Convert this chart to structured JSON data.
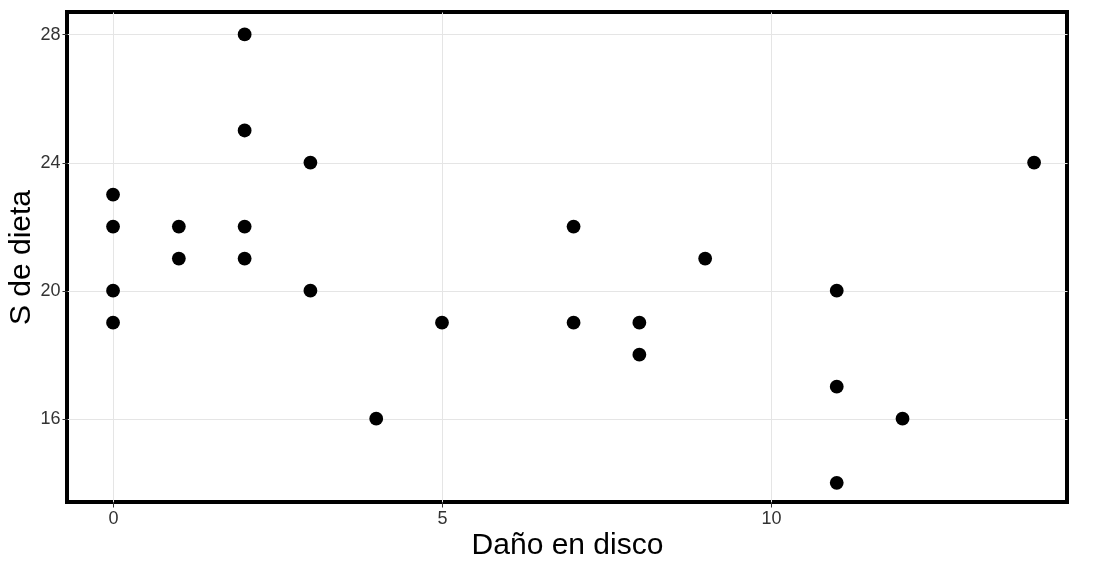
{
  "chart_data": {
    "type": "scatter",
    "xlabel": "Daño en disco",
    "ylabel": "S de dieta",
    "x": [
      0,
      0,
      0,
      0,
      1,
      1,
      2,
      2,
      2,
      2,
      3,
      3,
      4,
      5,
      7,
      7,
      8,
      8,
      9,
      11,
      11,
      11,
      12,
      14
    ],
    "values": [
      23,
      22,
      20,
      19,
      22,
      21,
      28,
      25,
      22,
      21,
      24,
      20,
      16,
      19,
      22,
      19,
      19,
      18,
      21,
      20,
      17,
      14,
      16,
      24
    ],
    "color": "#000000",
    "marker": "circle",
    "xlim": [
      -0.7,
      14.5
    ],
    "ylim": [
      13.4,
      28.7
    ],
    "xticks": [
      0,
      5,
      10
    ],
    "yticks": [
      16,
      20,
      24,
      28
    ],
    "grid": true
  }
}
